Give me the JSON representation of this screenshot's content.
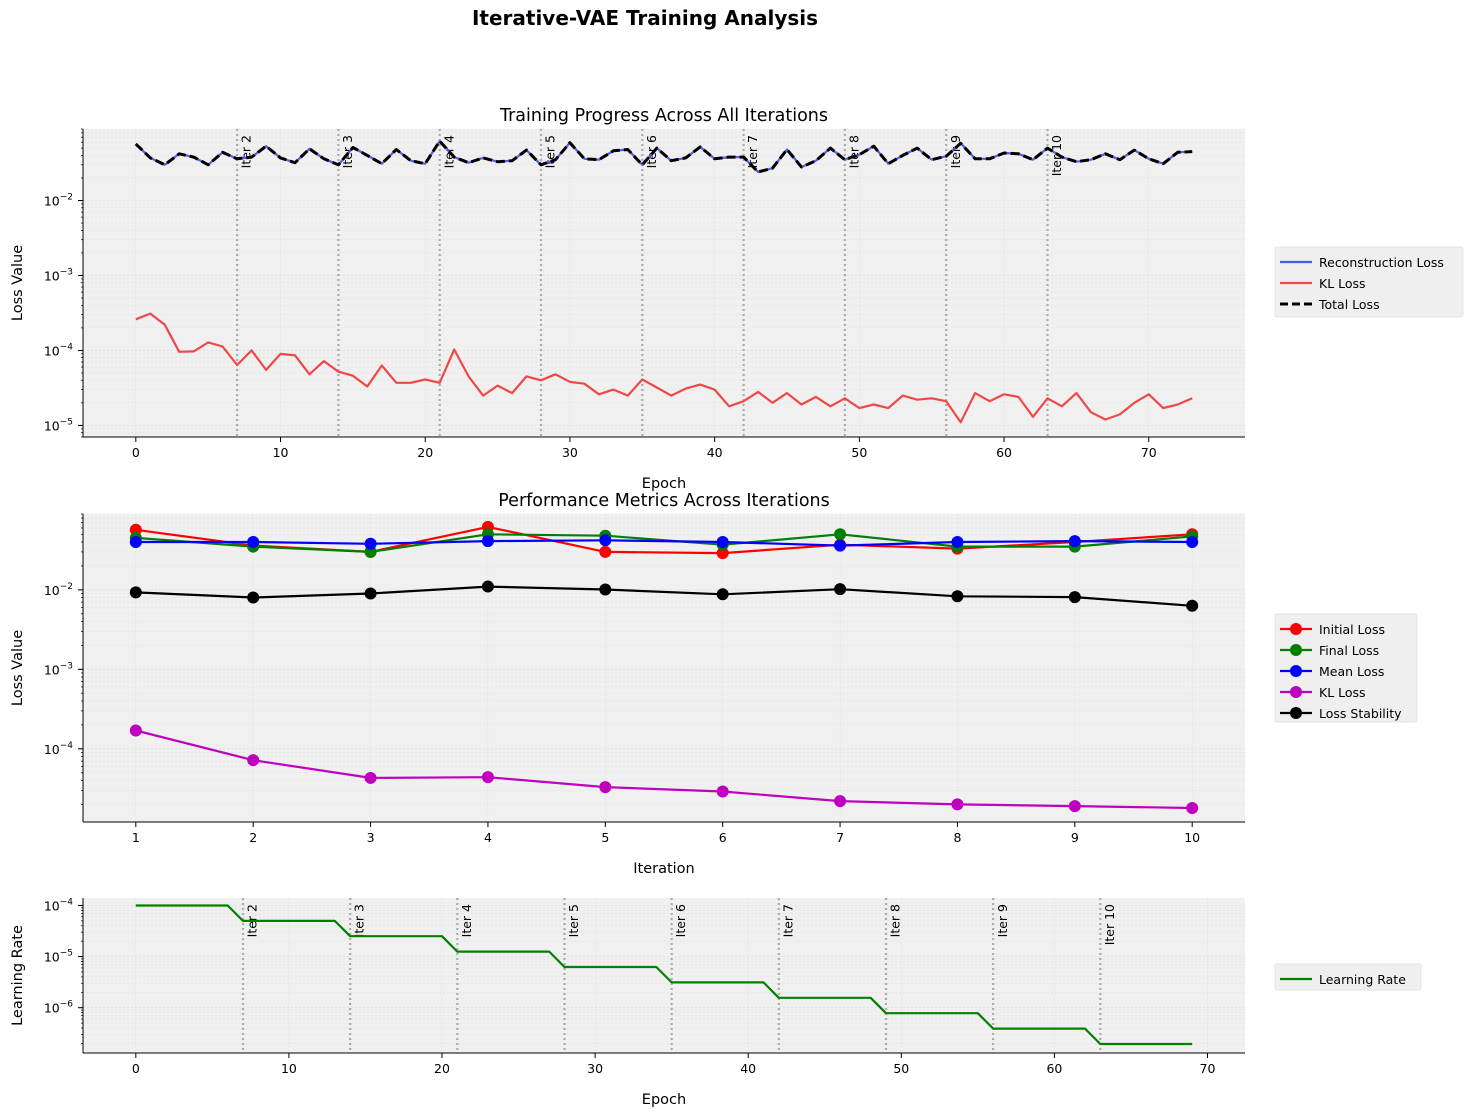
{
  "figure": {
    "title": "Iterative-VAE Training Analysis"
  },
  "colors": {
    "panel_bg": "#f0f0f0",
    "grid": "#dddddd",
    "marker_line": "#aaaaaa"
  },
  "chart_data": [
    {
      "type": "line",
      "title": "Training Progress Across All Iterations",
      "xlabel": "Epoch",
      "ylabel": "Loss Value",
      "yscale": "log",
      "xlim": [
        -3.65,
        76.65
      ],
      "ylim": [
        7e-06,
        0.09
      ],
      "xticks": [
        0,
        10,
        20,
        30,
        40,
        50,
        60,
        70
      ],
      "yticks": [
        {
          "value": 0.01,
          "base": "10",
          "exp": "−2"
        },
        {
          "value": 0.001,
          "base": "10",
          "exp": "−3"
        },
        {
          "value": 0.0001,
          "base": "10",
          "exp": "−4"
        },
        {
          "value": 1e-05,
          "base": "10",
          "exp": "−5"
        }
      ],
      "legend": "right",
      "grid": true,
      "markers": [
        {
          "x": 7,
          "label": "Iter 2"
        },
        {
          "x": 14,
          "label": "Iter 3"
        },
        {
          "x": 21,
          "label": "Iter 4"
        },
        {
          "x": 28,
          "label": "Iter 5"
        },
        {
          "x": 35,
          "label": "Iter 6"
        },
        {
          "x": 42,
          "label": "Iter 7"
        },
        {
          "x": 49,
          "label": "Iter 8"
        },
        {
          "x": 56,
          "label": "Iter 9"
        },
        {
          "x": 63,
          "label": "Iter 10"
        }
      ],
      "series": [
        {
          "name": "Reconstruction Loss",
          "color": "#4a56e8",
          "style": "solid",
          "values": [
            0.057,
            0.037,
            0.03,
            0.042,
            0.038,
            0.03,
            0.044,
            0.036,
            0.038,
            0.053,
            0.037,
            0.032,
            0.049,
            0.036,
            0.03,
            0.051,
            0.04,
            0.031,
            0.048,
            0.034,
            0.031,
            0.062,
            0.038,
            0.032,
            0.037,
            0.033,
            0.034,
            0.047,
            0.03,
            0.035,
            0.059,
            0.036,
            0.035,
            0.046,
            0.048,
            0.03,
            0.05,
            0.034,
            0.037,
            0.052,
            0.036,
            0.038,
            0.038,
            0.024,
            0.027,
            0.048,
            0.028,
            0.034,
            0.05,
            0.035,
            0.041,
            0.053,
            0.031,
            0.04,
            0.05,
            0.035,
            0.039,
            0.058,
            0.036,
            0.036,
            0.043,
            0.042,
            0.035,
            0.05,
            0.038,
            0.033,
            0.035,
            0.042,
            0.035,
            0.047,
            0.036,
            0.031,
            0.044,
            0.045
          ]
        },
        {
          "name": "KL Loss",
          "color": "#f04848",
          "style": "solid",
          "values": [
            0.00026,
            0.00031,
            0.00022,
            9.6e-05,
            9.7e-05,
            0.000128,
            0.000113,
            6.4e-05,
            0.0001,
            5.5e-05,
            9e-05,
            8.6e-05,
            4.8e-05,
            7.2e-05,
            5.2e-05,
            4.6e-05,
            3.3e-05,
            6.3e-05,
            3.7e-05,
            3.7e-05,
            4.1e-05,
            3.7e-05,
            0.000103,
            4.5e-05,
            2.5e-05,
            3.4e-05,
            2.7e-05,
            4.5e-05,
            4e-05,
            4.8e-05,
            3.8e-05,
            3.6e-05,
            2.6e-05,
            3e-05,
            2.5e-05,
            4.1e-05,
            3.2e-05,
            2.5e-05,
            3.1e-05,
            3.5e-05,
            3e-05,
            1.8e-05,
            2.1e-05,
            2.8e-05,
            2e-05,
            2.7e-05,
            1.9e-05,
            2.4e-05,
            1.8e-05,
            2.3e-05,
            1.7e-05,
            1.9e-05,
            1.7e-05,
            2.5e-05,
            2.2e-05,
            2.3e-05,
            2.1e-05,
            1.1e-05,
            2.7e-05,
            2.1e-05,
            2.6e-05,
            2.4e-05,
            1.3e-05,
            2.3e-05,
            1.8e-05,
            2.7e-05,
            1.5e-05,
            1.2e-05,
            1.4e-05,
            2e-05,
            2.6e-05,
            1.7e-05,
            1.9e-05,
            2.3e-05
          ]
        },
        {
          "name": "Total Loss",
          "color": "#000000",
          "style": "dashed",
          "values": [
            0.057,
            0.037,
            0.03,
            0.042,
            0.038,
            0.03,
            0.044,
            0.036,
            0.038,
            0.053,
            0.037,
            0.032,
            0.049,
            0.036,
            0.03,
            0.051,
            0.04,
            0.031,
            0.048,
            0.034,
            0.031,
            0.062,
            0.038,
            0.032,
            0.037,
            0.033,
            0.034,
            0.047,
            0.03,
            0.035,
            0.059,
            0.036,
            0.035,
            0.046,
            0.048,
            0.03,
            0.05,
            0.034,
            0.037,
            0.052,
            0.036,
            0.038,
            0.038,
            0.024,
            0.027,
            0.048,
            0.028,
            0.034,
            0.05,
            0.035,
            0.041,
            0.053,
            0.031,
            0.04,
            0.05,
            0.035,
            0.039,
            0.058,
            0.036,
            0.036,
            0.043,
            0.042,
            0.035,
            0.05,
            0.038,
            0.033,
            0.035,
            0.042,
            0.035,
            0.047,
            0.036,
            0.031,
            0.044,
            0.045
          ]
        }
      ]
    },
    {
      "type": "line",
      "title": "Performance Metrics Across Iterations",
      "xlabel": "Iteration",
      "ylabel": "Loss Value",
      "yscale": "log",
      "xlim": [
        0.55,
        10.45
      ],
      "ylim": [
        1.2e-05,
        0.09
      ],
      "x": [
        1,
        2,
        3,
        4,
        5,
        6,
        7,
        8,
        9,
        10
      ],
      "xticks": [
        1,
        2,
        3,
        4,
        5,
        6,
        7,
        8,
        9,
        10
      ],
      "yticks": [
        {
          "value": 0.01,
          "base": "10",
          "exp": "−2"
        },
        {
          "value": 0.001,
          "base": "10",
          "exp": "−3"
        },
        {
          "value": 0.0001,
          "base": "10",
          "exp": "−4"
        }
      ],
      "legend": "right",
      "grid": true,
      "series": [
        {
          "name": "Initial Loss",
          "color": "#ff0000",
          "values": [
            0.057,
            0.036,
            0.03,
            0.062,
            0.03,
            0.029,
            0.037,
            0.033,
            0.04,
            0.05
          ]
        },
        {
          "name": "Final Loss",
          "color": "#008000",
          "values": [
            0.045,
            0.035,
            0.03,
            0.05,
            0.048,
            0.037,
            0.05,
            0.035,
            0.035,
            0.047
          ]
        },
        {
          "name": "Mean Loss",
          "color": "#0000ff",
          "values": [
            0.04,
            0.04,
            0.038,
            0.041,
            0.042,
            0.04,
            0.036,
            0.04,
            0.041,
            0.04
          ]
        },
        {
          "name": "KL Loss",
          "color": "#bf00bf",
          "values": [
            0.00017,
            7.2e-05,
            4.3e-05,
            4.4e-05,
            3.3e-05,
            2.9e-05,
            2.2e-05,
            2e-05,
            1.9e-05,
            1.8e-05
          ]
        },
        {
          "name": "Loss Stability",
          "color": "#000000",
          "values": [
            0.0093,
            0.008,
            0.009,
            0.011,
            0.0101,
            0.0088,
            0.0102,
            0.0083,
            0.0081,
            0.0063
          ]
        }
      ]
    },
    {
      "type": "line",
      "title": "",
      "xlabel": "Epoch",
      "ylabel": "Learning Rate",
      "yscale": "log",
      "xlim": [
        -3.45,
        72.45
      ],
      "ylim": [
        1.3e-07,
        0.00014
      ],
      "xticks": [
        0,
        10,
        20,
        30,
        40,
        50,
        60,
        70
      ],
      "yticks": [
        {
          "value": 0.0001,
          "base": "10",
          "exp": "−4"
        },
        {
          "value": 1e-05,
          "base": "10",
          "exp": "−5"
        },
        {
          "value": 1e-06,
          "base": "10",
          "exp": "−6"
        }
      ],
      "legend": "right",
      "grid": true,
      "markers": [
        {
          "x": 7,
          "label": "Iter 2"
        },
        {
          "x": 14,
          "label": "Iter 3"
        },
        {
          "x": 21,
          "label": "Iter 4"
        },
        {
          "x": 28,
          "label": "Iter 5"
        },
        {
          "x": 35,
          "label": "Iter 6"
        },
        {
          "x": 42,
          "label": "Iter 7"
        },
        {
          "x": 49,
          "label": "Iter 8"
        },
        {
          "x": 56,
          "label": "Iter 9"
        },
        {
          "x": 63,
          "label": "Iter 10"
        }
      ],
      "series": [
        {
          "name": "Learning Rate",
          "color": "#008000",
          "values": [
            0.0001,
            0.0001,
            0.0001,
            0.0001,
            0.0001,
            0.0001,
            0.0001,
            5e-05,
            5e-05,
            5e-05,
            5e-05,
            5e-05,
            5e-05,
            5e-05,
            2.5e-05,
            2.5e-05,
            2.5e-05,
            2.5e-05,
            2.5e-05,
            2.5e-05,
            2.5e-05,
            1.25e-05,
            1.25e-05,
            1.25e-05,
            1.25e-05,
            1.25e-05,
            1.25e-05,
            1.25e-05,
            6.25e-06,
            6.25e-06,
            6.25e-06,
            6.25e-06,
            6.25e-06,
            6.25e-06,
            6.25e-06,
            3.125e-06,
            3.125e-06,
            3.125e-06,
            3.125e-06,
            3.125e-06,
            3.125e-06,
            3.125e-06,
            1.5625e-06,
            1.5625e-06,
            1.5625e-06,
            1.5625e-06,
            1.5625e-06,
            1.5625e-06,
            1.5625e-06,
            7.8125e-07,
            7.8125e-07,
            7.8125e-07,
            7.8125e-07,
            7.8125e-07,
            7.8125e-07,
            7.8125e-07,
            3.90625e-07,
            3.90625e-07,
            3.90625e-07,
            3.90625e-07,
            3.90625e-07,
            3.90625e-07,
            3.90625e-07,
            1.953125e-07,
            1.953125e-07,
            1.953125e-07,
            1.953125e-07,
            1.953125e-07,
            1.953125e-07,
            1.953125e-07
          ]
        }
      ]
    }
  ]
}
